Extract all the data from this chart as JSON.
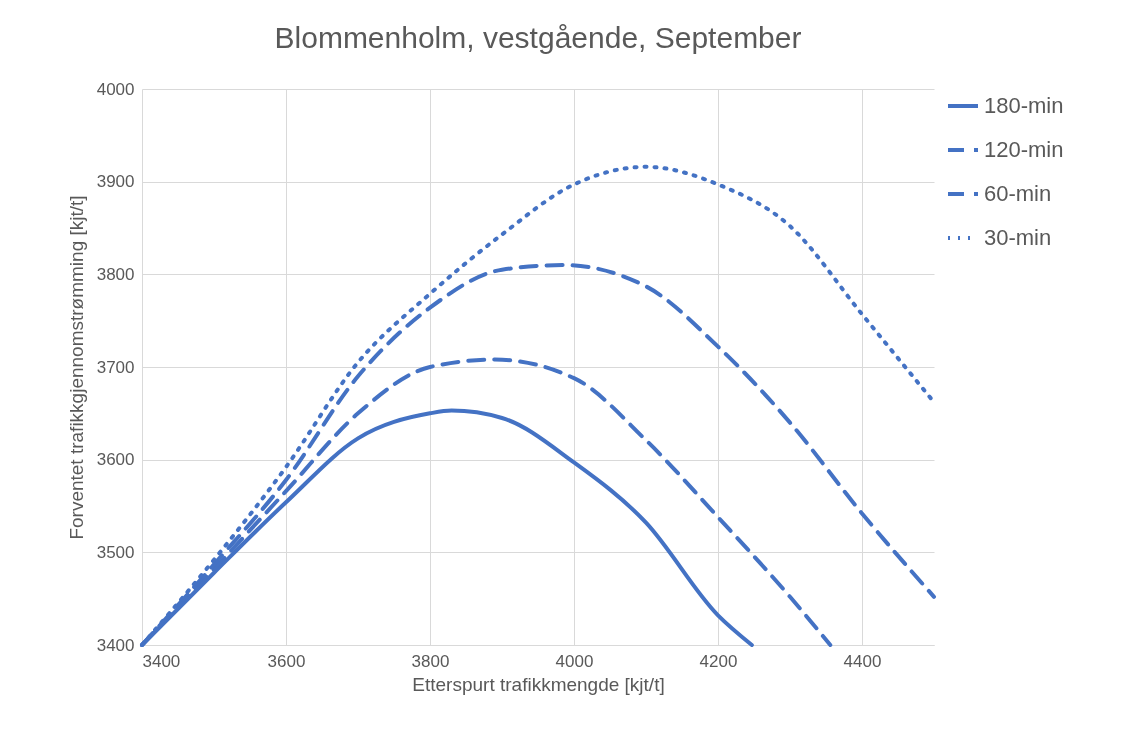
{
  "chart_data": {
    "type": "line",
    "title": "Blommenholm, vestgående, September",
    "xlabel": "Etterspurt trafikkmengde [kjt/t]",
    "ylabel": "Forventet trafikkgjennomstrømming [kjt/t]",
    "xlim": [
      3400,
      4500
    ],
    "xticks": [
      3400,
      3600,
      3800,
      4000,
      4200,
      4400
    ],
    "ylim": [
      3400,
      4000
    ],
    "yticks": [
      3400,
      3500,
      3600,
      3700,
      3800,
      3900,
      4000
    ],
    "grid": true,
    "legend": "right",
    "marker": "none",
    "series": [
      {
        "name": "180-min",
        "color": "#4472c4",
        "line_style": "solid",
        "x": [
          3400,
          3500,
          3600,
          3700,
          3800,
          3830,
          3900,
          4000,
          4100,
          4200,
          4247
        ],
        "values": [
          3400,
          3478,
          3554,
          3623,
          3650,
          3653,
          3645,
          3597,
          3532,
          3432,
          3400
        ]
      },
      {
        "name": "120-min",
        "color": "#4472c4",
        "line_style": "dashed",
        "x": [
          3400,
          3500,
          3600,
          3700,
          3800,
          3890,
          4000,
          4100,
          4200,
          4300,
          4356
        ],
        "values": [
          3400,
          3482,
          3566,
          3650,
          3700,
          3708,
          3688,
          3621,
          3538,
          3452,
          3400
        ]
      },
      {
        "name": "60-min",
        "color": "#4472c4",
        "line_style": "dashed",
        "x": [
          3400,
          3500,
          3600,
          3700,
          3800,
          3900,
          3985,
          4100,
          4200,
          4300,
          4400,
          4500
        ],
        "values": [
          3400,
          3487,
          3578,
          3690,
          3764,
          3805,
          3810,
          3787,
          3722,
          3640,
          3542,
          3452
        ]
      },
      {
        "name": "30-min",
        "color": "#4472c4",
        "line_style": "dotted",
        "x": [
          3400,
          3500,
          3600,
          3700,
          3800,
          3900,
          4000,
          4100,
          4200,
          4300,
          4400,
          4500
        ],
        "values": [
          3400,
          3492,
          3592,
          3705,
          3779,
          3843,
          3897,
          3916,
          3897,
          3852,
          3757,
          3662
        ]
      }
    ]
  }
}
